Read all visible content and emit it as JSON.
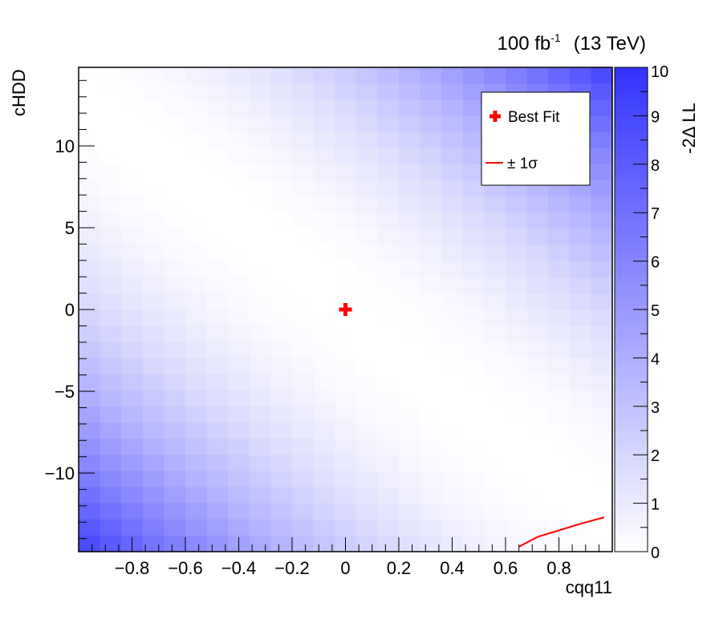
{
  "header": {
    "lumi_value": "100 fb",
    "lumi_exponent": "-1",
    "energy": "(13 TeV)"
  },
  "colorbar": {
    "label": "-2Δ LL",
    "min": 0,
    "max": 10,
    "tick_labels": [
      "0",
      "1",
      "2",
      "3",
      "4",
      "5",
      "6",
      "7",
      "8",
      "9",
      "10"
    ],
    "color_low": "#ffffff",
    "color_high": "#3333ff"
  },
  "legend": {
    "position": "top-right",
    "best_fit_label": "Best Fit",
    "sigma_label": "± 1σ",
    "best_fit_color": "#ff0000",
    "sigma_color": "#ff0000"
  },
  "chart_data": {
    "type": "heatmap",
    "title": "",
    "xlabel": "cqq11",
    "ylabel": "cHDD",
    "xlim": [
      -1.0,
      1.0
    ],
    "ylim": [
      -14.8,
      14.8
    ],
    "x_ticks": [
      -0.8,
      -0.6,
      -0.4,
      -0.2,
      0,
      0.2,
      0.4,
      0.6,
      0.8
    ],
    "x_tick_labels": [
      "−0.8",
      "−0.6",
      "−0.4",
      "−0.2",
      "0",
      "0.2",
      "0.4",
      "0.6",
      "0.8"
    ],
    "y_ticks": [
      -10,
      -5,
      0,
      5,
      10
    ],
    "y_tick_labels": [
      "−10",
      "−5",
      "0",
      "5",
      "10"
    ],
    "z_label": "-2Δ LL",
    "zlim": [
      0,
      10
    ],
    "best_fit": {
      "x": 0.0,
      "y": 0.0
    },
    "one_sigma_contour": [
      {
        "x": 0.65,
        "y": -14.5
      },
      {
        "x": 0.72,
        "y": -13.9
      },
      {
        "x": 0.8,
        "y": -13.5
      },
      {
        "x": 0.88,
        "y": -13.1
      },
      {
        "x": 0.97,
        "y": -12.7
      }
    ],
    "surface": "approximately -2ΔLL = 2.1 * ((y + 13.2*x)/13.2)^2, minimum along a diagonal valley through the best fit, rising to ~2 at the top-left and bottom-right corners"
  }
}
